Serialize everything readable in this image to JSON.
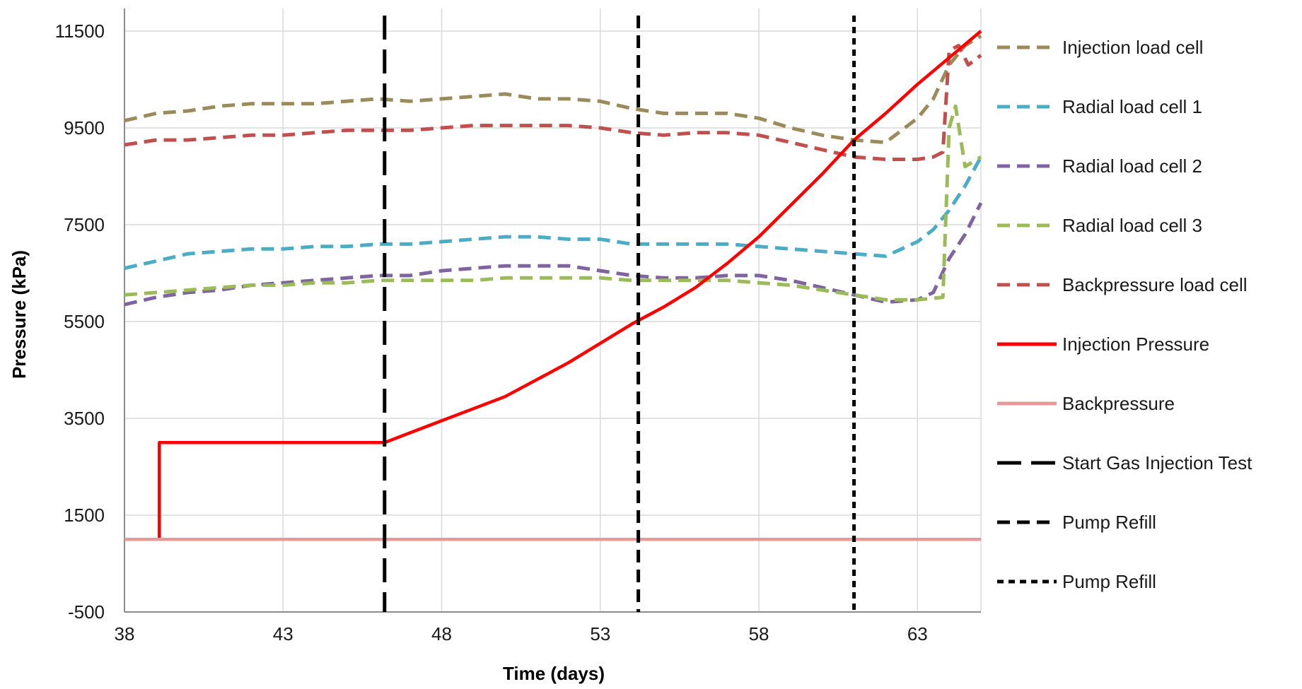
{
  "chart_data": {
    "type": "line",
    "title": "",
    "xlabel": "Time (days)",
    "ylabel": "Pressure (kPa)",
    "xlim": [
      38,
      65
    ],
    "ylim": [
      -500,
      12000
    ],
    "x_ticks": [
      38,
      43,
      48,
      53,
      58,
      63
    ],
    "y_ticks": [
      -500,
      1500,
      3500,
      5500,
      7500,
      9500,
      11500
    ],
    "x_tick_labels": [
      "38",
      "43",
      "48",
      "53",
      "58",
      "63"
    ],
    "y_tick_labels": [
      "-500",
      "1500",
      "3500",
      "5500",
      "7500",
      "9500",
      "11500"
    ],
    "grid": true,
    "legend_position": "right",
    "series": [
      {
        "name": "Injection load cell",
        "color": "#9B8A5A",
        "style": "dashed",
        "x": [
          38,
          39,
          40,
          41,
          42,
          43,
          44,
          45,
          46,
          47,
          48,
          49,
          50,
          51,
          52,
          53,
          54,
          55,
          56,
          57,
          58,
          59,
          60,
          61,
          62,
          63,
          63.5,
          64,
          64.5,
          65
        ],
        "y": [
          9650,
          9800,
          9850,
          9950,
          10000,
          10000,
          10000,
          10050,
          10100,
          10050,
          10100,
          10150,
          10200,
          10100,
          10100,
          10050,
          9900,
          9800,
          9800,
          9800,
          9700,
          9500,
          9350,
          9250,
          9200,
          9700,
          10100,
          10800,
          11200,
          11400
        ]
      },
      {
        "name": "Radial load cell 1",
        "color": "#4BACC6",
        "style": "dashed",
        "x": [
          38,
          39,
          40,
          41,
          42,
          43,
          44,
          45,
          46,
          47,
          48,
          49,
          50,
          51,
          52,
          53,
          54,
          55,
          56,
          57,
          58,
          59,
          60,
          61,
          62,
          63,
          63.5,
          64,
          64.5,
          65
        ],
        "y": [
          6600,
          6750,
          6900,
          6950,
          7000,
          7000,
          7050,
          7050,
          7100,
          7100,
          7150,
          7200,
          7250,
          7250,
          7200,
          7200,
          7100,
          7100,
          7100,
          7100,
          7050,
          7000,
          6950,
          6900,
          6850,
          7150,
          7400,
          7800,
          8300,
          8900
        ]
      },
      {
        "name": "Radial load cell 2",
        "color": "#8064A2",
        "style": "dashed",
        "x": [
          38,
          39,
          40,
          41,
          42,
          43,
          44,
          45,
          46,
          47,
          48,
          49,
          50,
          51,
          52,
          53,
          54,
          55,
          56,
          57,
          58,
          59,
          60,
          61,
          62,
          63,
          63.5,
          64,
          64.5,
          65
        ],
        "y": [
          5850,
          6000,
          6100,
          6150,
          6250,
          6300,
          6350,
          6400,
          6450,
          6450,
          6550,
          6600,
          6650,
          6650,
          6650,
          6550,
          6450,
          6400,
          6400,
          6450,
          6450,
          6350,
          6200,
          6050,
          5900,
          5950,
          6100,
          6800,
          7300,
          7950
        ]
      },
      {
        "name": "Radial load cell 3",
        "color": "#9BBB59",
        "style": "dashed",
        "x": [
          38,
          39,
          40,
          41,
          42,
          43,
          44,
          45,
          46,
          47,
          48,
          49,
          50,
          51,
          52,
          53,
          54,
          55,
          56,
          57,
          58,
          59,
          60,
          61,
          62,
          63,
          63.8,
          64.0,
          64.2,
          64.5,
          65
        ],
        "y": [
          6050,
          6100,
          6150,
          6200,
          6250,
          6250,
          6300,
          6300,
          6350,
          6350,
          6350,
          6350,
          6400,
          6400,
          6400,
          6400,
          6350,
          6350,
          6350,
          6350,
          6300,
          6250,
          6150,
          6050,
          5950,
          5950,
          6000,
          9500,
          9950,
          8700,
          8900
        ]
      },
      {
        "name": "Backpressure load cell",
        "color": "#C0504D",
        "style": "dashed",
        "x": [
          38,
          39,
          40,
          41,
          42,
          43,
          44,
          45,
          46,
          47,
          48,
          49,
          50,
          51,
          52,
          53,
          54,
          55,
          56,
          57,
          58,
          59,
          60,
          61,
          62,
          63,
          63.5,
          63.8,
          64.0,
          64.3,
          64.6,
          65
        ],
        "y": [
          9150,
          9250,
          9250,
          9300,
          9350,
          9350,
          9400,
          9450,
          9450,
          9450,
          9500,
          9550,
          9550,
          9550,
          9550,
          9500,
          9400,
          9350,
          9400,
          9400,
          9350,
          9200,
          9050,
          8900,
          8850,
          8850,
          8900,
          9000,
          11100,
          11200,
          10800,
          11000
        ]
      },
      {
        "name": "Injection Pressure",
        "color": "#FF0000",
        "style": "solid",
        "x": [
          38,
          39.1,
          39.1,
          40,
          42,
          44,
          46.2,
          47,
          48,
          49,
          50,
          51,
          52,
          53,
          54,
          55,
          56,
          57,
          58,
          59,
          60,
          61,
          62,
          63,
          64,
          65
        ],
        "y": [
          1000,
          1000,
          3000,
          3000,
          3000,
          3000,
          3000,
          3200,
          3450,
          3700,
          3950,
          4300,
          4650,
          5050,
          5450,
          5800,
          6200,
          6700,
          7250,
          7900,
          8550,
          9250,
          9800,
          10400,
          10950,
          11500
        ]
      },
      {
        "name": "Backpressure",
        "color": "#E59998",
        "style": "solid",
        "x": [
          38,
          45,
          50,
          55,
          60,
          65
        ],
        "y": [
          1000,
          1000,
          1000,
          1000,
          1000,
          1000
        ]
      }
    ],
    "vertical_markers": [
      {
        "name": "Start Gas Injection Test",
        "x": 46.2,
        "color": "#000000",
        "style": "long-dash"
      },
      {
        "name": "Pump Refill",
        "x": 54.2,
        "color": "#000000",
        "style": "dash"
      },
      {
        "name": "Pump Refill",
        "x": 61.0,
        "color": "#000000",
        "style": "dot"
      }
    ]
  }
}
